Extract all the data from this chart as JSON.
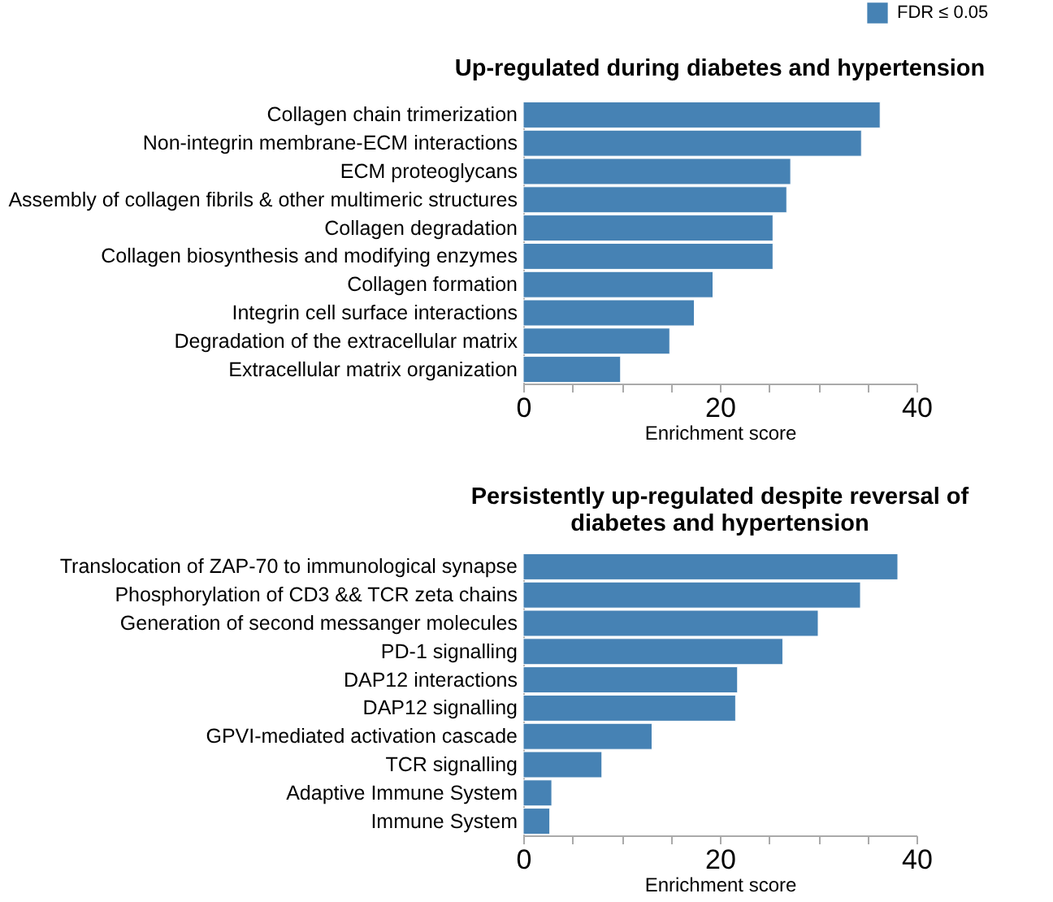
{
  "chart_data": [
    {
      "type": "bar",
      "orientation": "horizontal",
      "title": "Up-regulated during diabetes and hypertension",
      "xlabel": "Enrichment score",
      "categories": [
        "Collagen chain trimerization",
        "Non-integrin membrane-ECM interactions",
        "ECM proteoglycans",
        "Assembly of collagen fibrils & other multimeric structures",
        "Collagen degradation",
        "Collagen biosynthesis and modifying enzymes",
        "Collagen formation",
        "Integrin cell surface interactions",
        "Degradation of the extracellular matrix",
        "Extracellular matrix organization"
      ],
      "series": [
        {
          "name": "FDR ≤ 0.05",
          "color": "#4682b4",
          "values": [
            36.3,
            34.4,
            27.2,
            26.8,
            25.4,
            25.4,
            19.3,
            17.4,
            14.9,
            9.9
          ]
        }
      ],
      "xlim": [
        0,
        40
      ],
      "xticks": [
        0,
        {
          "value": 5,
          "label": null
        },
        {
          "value": 10,
          "label": null
        },
        {
          "value": 15,
          "label": null
        },
        20,
        {
          "value": 25,
          "label": null
        },
        {
          "value": 30,
          "label": null
        },
        {
          "value": 35,
          "label": null
        },
        40
      ],
      "legend": "top right",
      "grid": false
    },
    {
      "type": "bar",
      "orientation": "horizontal",
      "title": "Persistently up-regulated despite reversal of diabetes and hypertension",
      "xlabel": "Enrichment score",
      "categories": [
        "Translocation of ZAP-70 to immunological synapse",
        "Phosphorylation of CD3 && TCR zeta chains",
        "Generation of second messanger molecules",
        "PD-1 signalling",
        "DAP12 interactions",
        "DAP12 signalling",
        "GPVI-mediated activation cascade",
        "TCR signalling",
        "Adaptive Immune System",
        "Immune System"
      ],
      "series": [
        {
          "color": "#4682b4",
          "values": [
            38.1,
            34.3,
            30.0,
            26.4,
            21.8,
            21.6,
            13.1,
            8.0,
            2.9,
            2.7
          ]
        }
      ],
      "xlim": [
        0,
        40
      ],
      "xticks": [
        0,
        {
          "value": 5,
          "label": null
        },
        {
          "value": 10,
          "label": null
        },
        {
          "value": 15,
          "label": null
        },
        20,
        {
          "value": 25,
          "label": null
        },
        {
          "value": 30,
          "label": null
        },
        {
          "value": 35,
          "label": null
        },
        40
      ],
      "grid": false
    }
  ]
}
